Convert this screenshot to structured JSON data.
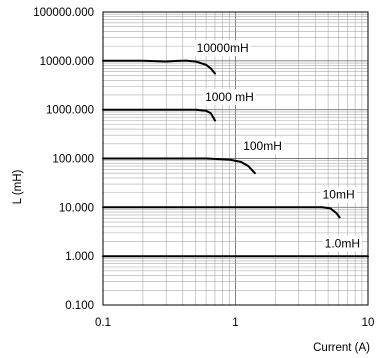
{
  "chart_data": {
    "type": "line",
    "title": "",
    "xlabel": "Current (A)",
    "ylabel": "L (mH)",
    "xscale": "log",
    "yscale": "log",
    "xlim": [
      0.1,
      10
    ],
    "ylim": [
      0.1,
      100000
    ],
    "x_ticks": [
      "0.1",
      "1",
      "10"
    ],
    "y_ticks": [
      "0.100",
      "1.000",
      "10.000",
      "100.000",
      "1000.000",
      "10000.000",
      "100000.000"
    ],
    "grid": true,
    "series": [
      {
        "name": "10000mH",
        "label_at": [
          0.8,
          15000
        ],
        "points": [
          [
            0.1,
            10000
          ],
          [
            0.15,
            10050
          ],
          [
            0.2,
            10000
          ],
          [
            0.3,
            9700
          ],
          [
            0.35,
            9900
          ],
          [
            0.42,
            10100
          ],
          [
            0.5,
            9700
          ],
          [
            0.6,
            8300
          ],
          [
            0.65,
            7000
          ],
          [
            0.7,
            5500
          ]
        ]
      },
      {
        "name": "1000 mH",
        "label_at": [
          0.9,
          1500
        ],
        "points": [
          [
            0.1,
            1000
          ],
          [
            0.2,
            1000
          ],
          [
            0.4,
            1000
          ],
          [
            0.5,
            1000
          ],
          [
            0.6,
            950
          ],
          [
            0.65,
            850
          ],
          [
            0.7,
            600
          ]
        ]
      },
      {
        "name": "100mH",
        "label_at": [
          1.6,
          150
        ],
        "points": [
          [
            0.1,
            100
          ],
          [
            0.3,
            100
          ],
          [
            0.6,
            100
          ],
          [
            0.9,
            95
          ],
          [
            1.1,
            85
          ],
          [
            1.25,
            70
          ],
          [
            1.4,
            50
          ]
        ]
      },
      {
        "name": "10mH",
        "label_at": [
          6.0,
          15
        ],
        "points": [
          [
            0.1,
            10
          ],
          [
            0.5,
            10
          ],
          [
            1,
            10
          ],
          [
            3,
            10
          ],
          [
            4.5,
            10
          ],
          [
            5.2,
            9.5
          ],
          [
            5.8,
            7.5
          ],
          [
            6.1,
            6.2
          ]
        ]
      },
      {
        "name": "1.0mH",
        "label_at": [
          6.4,
          1.5
        ],
        "points": [
          [
            0.1,
            1.0
          ],
          [
            1,
            1.0
          ],
          [
            10,
            1.0
          ]
        ]
      }
    ]
  }
}
